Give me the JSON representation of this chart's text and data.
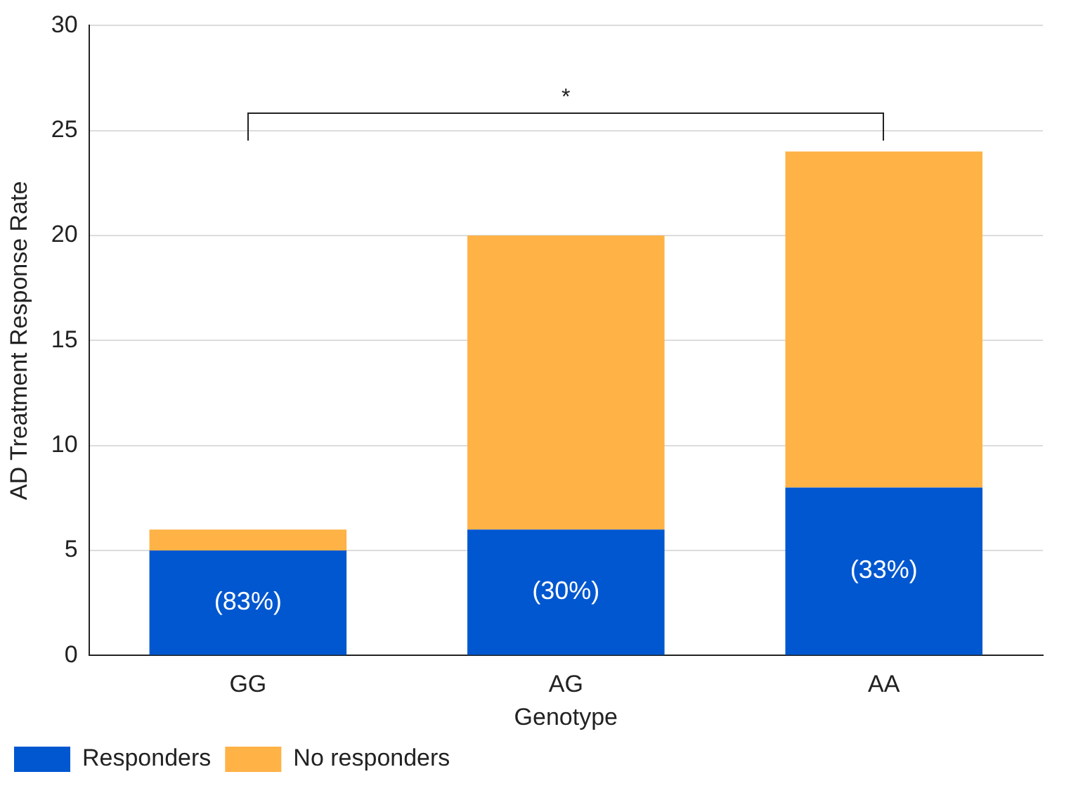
{
  "chart_data": {
    "type": "bar",
    "stacked": true,
    "xlabel": "Genotype",
    "ylabel": "AD Treatment Response Rate",
    "categories": [
      "GG",
      "AG",
      "AA"
    ],
    "series": [
      {
        "name": "Responders",
        "color": "#0057d0",
        "values": [
          5,
          6,
          8
        ]
      },
      {
        "name": "No responders",
        "color": "#ffb246",
        "values": [
          1,
          14,
          16
        ]
      }
    ],
    "ylim": [
      0,
      30
    ],
    "yticks": [
      0,
      5,
      10,
      15,
      20,
      25,
      30
    ],
    "grid": "y",
    "legend": "bottom left",
    "annotations": [
      "*",
      "(83%)",
      "(30%)",
      "(33%)"
    ]
  }
}
